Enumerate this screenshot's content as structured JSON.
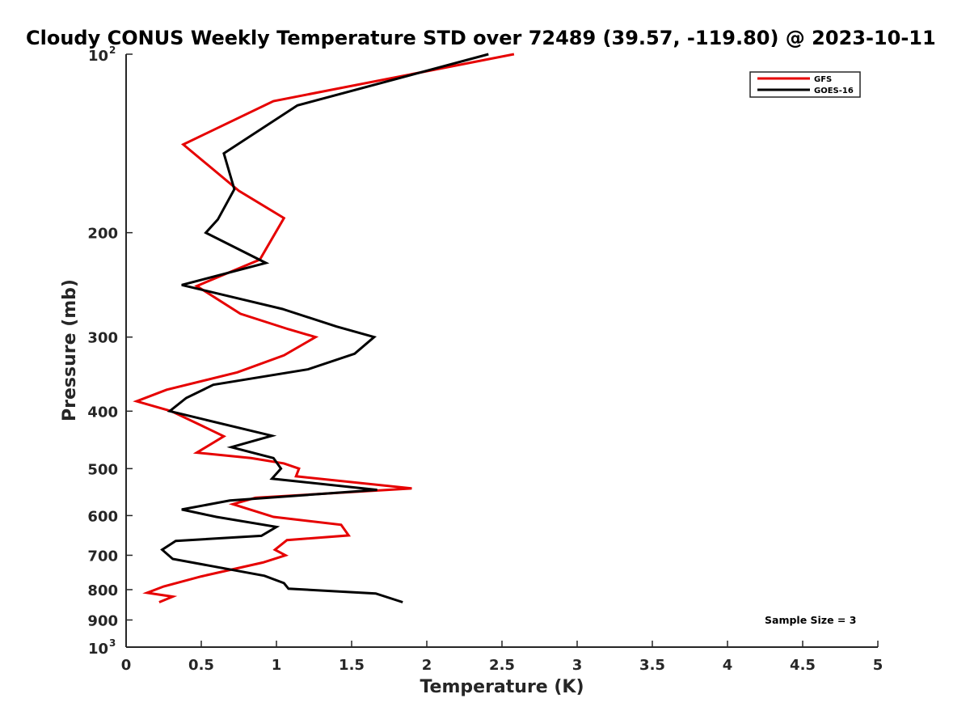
{
  "chart_data": {
    "type": "line",
    "title": "Cloudy CONUS Weekly Temperature STD over 72489 (39.57, -119.80) @ 2023-10-11",
    "xlabel": "Temperature (K)",
    "ylabel": "Pressure (mb)",
    "xlim": [
      0,
      5
    ],
    "ylim": [
      100,
      1000
    ],
    "y_scale": "log",
    "y_reversed": true,
    "x_ticks": [
      0,
      0.5,
      1,
      1.5,
      2,
      2.5,
      3,
      3.5,
      4,
      4.5,
      5
    ],
    "x_tick_labels": [
      "0",
      "0.5",
      "1",
      "1.5",
      "2",
      "2.5",
      "3",
      "3.5",
      "4",
      "4.5",
      "5"
    ],
    "y_ticks": [
      {
        "value": 100,
        "label": "10",
        "exp": "2"
      },
      {
        "value": 200,
        "label": "200"
      },
      {
        "value": 300,
        "label": "300"
      },
      {
        "value": 400,
        "label": "400"
      },
      {
        "value": 500,
        "label": "500"
      },
      {
        "value": 600,
        "label": "600"
      },
      {
        "value": 700,
        "label": "700"
      },
      {
        "value": 800,
        "label": "800"
      },
      {
        "value": 900,
        "label": "900"
      },
      {
        "value": 1000,
        "label": "10",
        "exp": "3"
      }
    ],
    "grid": false,
    "legend_position": "top-right",
    "annotation": "Sample Size = 3",
    "series": [
      {
        "name": "GFS",
        "color": "#e60000",
        "points": [
          [
            2.58,
            100
          ],
          [
            0.98,
            120
          ],
          [
            0.38,
            142
          ],
          [
            0.75,
            170
          ],
          [
            1.05,
            189
          ],
          [
            0.89,
            222
          ],
          [
            0.47,
            246
          ],
          [
            0.76,
            274
          ],
          [
            1.08,
            291
          ],
          [
            1.26,
            300
          ],
          [
            1.05,
            322
          ],
          [
            0.74,
            344
          ],
          [
            0.27,
            368
          ],
          [
            0.07,
            385
          ],
          [
            0.3,
            400
          ],
          [
            0.51,
            424
          ],
          [
            0.65,
            441
          ],
          [
            0.47,
            470
          ],
          [
            0.83,
            480
          ],
          [
            1.05,
            490
          ],
          [
            1.15,
            500
          ],
          [
            1.13,
            515
          ],
          [
            1.9,
            540
          ],
          [
            0.86,
            560
          ],
          [
            0.71,
            574
          ],
          [
            0.98,
            603
          ],
          [
            1.43,
            622
          ],
          [
            1.48,
            648
          ],
          [
            1.07,
            660
          ],
          [
            0.99,
            685
          ],
          [
            1.06,
            700
          ],
          [
            0.91,
            720
          ],
          [
            0.5,
            760
          ],
          [
            0.25,
            790
          ],
          [
            0.14,
            810
          ],
          [
            0.31,
            822
          ],
          [
            0.22,
            840
          ]
        ]
      },
      {
        "name": "GOES-16",
        "color": "#000000",
        "points": [
          [
            2.41,
            100
          ],
          [
            1.14,
            122
          ],
          [
            0.65,
            147
          ],
          [
            0.72,
            169
          ],
          [
            0.61,
            190
          ],
          [
            0.53,
            200
          ],
          [
            0.93,
            225
          ],
          [
            0.37,
            245
          ],
          [
            1.04,
            269
          ],
          [
            1.4,
            288
          ],
          [
            1.65,
            300
          ],
          [
            1.52,
            320
          ],
          [
            1.21,
            340
          ],
          [
            0.58,
            361
          ],
          [
            0.4,
            380
          ],
          [
            0.29,
            400
          ],
          [
            0.97,
            440
          ],
          [
            0.7,
            460
          ],
          [
            0.98,
            480
          ],
          [
            1.03,
            500
          ],
          [
            0.97,
            520
          ],
          [
            1.67,
            543
          ],
          [
            0.69,
            566
          ],
          [
            0.37,
            586
          ],
          [
            0.6,
            603
          ],
          [
            1.0,
            627
          ],
          [
            0.9,
            649
          ],
          [
            0.33,
            662
          ],
          [
            0.24,
            685
          ],
          [
            0.31,
            710
          ],
          [
            0.92,
            758
          ],
          [
            1.05,
            780
          ],
          [
            1.08,
            797
          ],
          [
            1.66,
            812
          ],
          [
            1.84,
            840
          ]
        ]
      }
    ]
  }
}
